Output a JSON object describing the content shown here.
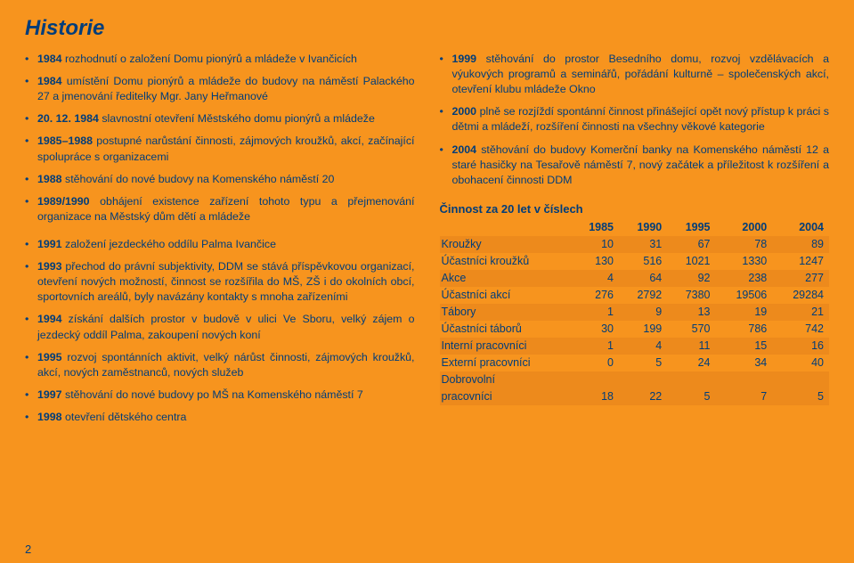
{
  "title": "Historie",
  "pageNumber": "2",
  "leftTop": [
    {
      "year": "1984",
      "text": " rozhodnutí o založení Domu pionýrů a mládeže v  Ivančicích"
    },
    {
      "year": "1984",
      "text": " umístění Domu pionýrů a mládeže do budovy na náměstí Palackého 27 a jmenování ředitelky Mgr.  Jany Heřmanové"
    },
    {
      "year": "20. 12. 1984",
      "text": " slavnostní otevření Městského domu pionýrů a mládeže"
    },
    {
      "year": "1985–1988",
      "text": " postupné narůstání činnosti, zájmových kroužků, akcí, začínající spolupráce s organizacemi"
    },
    {
      "year": "1988",
      "text": " stěhování do nové budovy na Komenského náměstí 20"
    },
    {
      "year": "1989/1990",
      "text": " obhájení existence zařízení tohoto typu a přejmenování organizace na Městský dům dětí a mládeže"
    }
  ],
  "leftBottom": [
    {
      "year": "1991",
      "text": " založení jezdeckého oddílu Palma Ivančice"
    },
    {
      "year": "1993",
      "text": " přechod do právní subjektivity, DDM se stává příspěvkovou organizací, otevření nových možností, činnost se rozšířila do MŠ, ZŠ i do okolních obcí, sportovních areálů, byly navázány kontakty s mnoha zařízeními"
    },
    {
      "year": "1994",
      "text": " získání dalších prostor v budově v ulici Ve Sboru, velký zájem o jezdecký oddíl Palma, zakoupení nových koní"
    },
    {
      "year": "1995",
      "text": " rozvoj spontánních aktivit, velký nárůst činnosti, zájmových kroužků, akcí, nových zaměstnanců, nových služeb"
    },
    {
      "year": "1997",
      "text": " stěhování do nové budovy po MŠ na Komenského náměstí 7"
    },
    {
      "year": "1998",
      "text": " otevření dětského centra"
    }
  ],
  "rightTop": [
    {
      "year": "1999",
      "text": " stěhování do prostor Besedního domu,  rozvoj vzdělávacích a výukových programů a seminářů, pořádání kulturně – společenských akcí, otevření klubu mládeže Okno"
    },
    {
      "year": "2000",
      "text": " plně se rozjíždí spontánní činnost přinášející opět nový přístup k práci s dětmi a mládeží, rozšíření činnosti na všechny věkové kategorie"
    },
    {
      "year": "2004",
      "text": " stěhování do budovy Komerční banky na Komenského náměstí 12 a staré hasičky na Tesařově náměstí 7, nový začátek a příležitost k  rozšíření a obohacení činnosti DDM"
    }
  ],
  "tableTitle": "Činnost za 20 let v číslech",
  "tableHeaders": [
    "",
    "1985",
    "1990",
    "1995",
    "2000",
    "2004"
  ],
  "tableRows": [
    {
      "shade": true,
      "cells": [
        "Kroužky",
        "10",
        "31",
        "67",
        "78",
        "89"
      ]
    },
    {
      "shade": false,
      "cells": [
        "Účastníci kroužků",
        "130",
        "516",
        "1021",
        "1330",
        "1247"
      ]
    },
    {
      "shade": true,
      "cells": [
        "Akce",
        "4",
        "64",
        "92",
        "238",
        "277"
      ]
    },
    {
      "shade": false,
      "cells": [
        "Účastníci akcí",
        "276",
        "2792",
        "7380",
        "19506",
        "29284"
      ]
    },
    {
      "shade": true,
      "cells": [
        "Tábory",
        "1",
        "9",
        "13",
        "19",
        "21"
      ]
    },
    {
      "shade": false,
      "cells": [
        "Účastníci táborů",
        "30",
        "199",
        "570",
        "786",
        "742"
      ]
    },
    {
      "shade": true,
      "cells": [
        "Interní pracovníci",
        "1",
        "4",
        "11",
        "15",
        "16"
      ]
    },
    {
      "shade": false,
      "cells": [
        "Externí pracovníci",
        "0",
        "5",
        "24",
        "34",
        "40"
      ]
    },
    {
      "shade": true,
      "cells": [
        "Dobrovolní pracovníci",
        "18",
        "22",
        "5",
        "7",
        "5"
      ],
      "twoLine": true
    }
  ]
}
